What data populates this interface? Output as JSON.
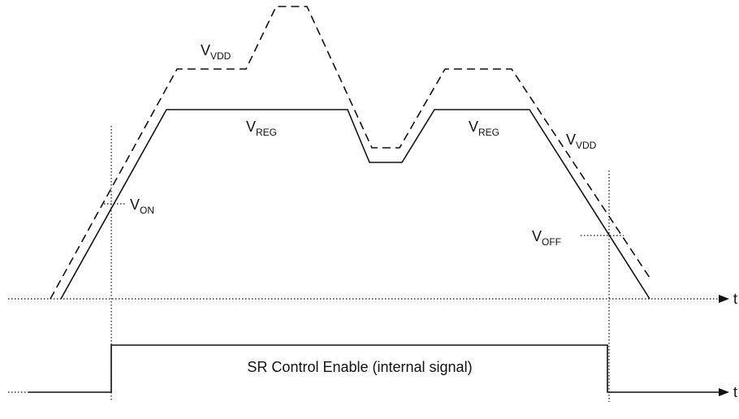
{
  "labels": {
    "vdd_top": {
      "main": "V",
      "sub": "VDD"
    },
    "reg_left": {
      "main": "V",
      "sub": "REG"
    },
    "reg_right": {
      "main": "V",
      "sub": "REG"
    },
    "vdd_right": {
      "main": "V",
      "sub": "VDD"
    },
    "von": {
      "main": "V",
      "sub": "ON"
    },
    "voff": {
      "main": "V",
      "sub": "OFF"
    }
  },
  "enable_label": "SR Control Enable (internal signal)",
  "axis_top": "t",
  "axis_bottom": "t"
}
